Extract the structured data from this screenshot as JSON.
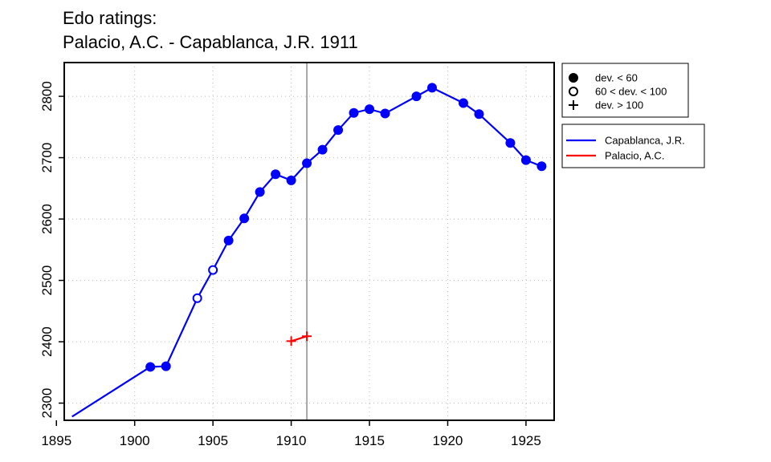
{
  "chart_data": {
    "type": "line",
    "title": "Edo ratings:",
    "subtitle": "Palacio, A.C. - Capablanca, J.R. 1911",
    "xlim": [
      1895.5,
      1926.8
    ],
    "ylim": [
      2272,
      2855
    ],
    "x_ticks": [
      1895,
      1900,
      1905,
      1910,
      1915,
      1920,
      1925
    ],
    "y_ticks": [
      2300,
      2400,
      2500,
      2600,
      2700,
      2800
    ],
    "grid": true,
    "reference_line_x": 1911,
    "marker_legend": {
      "placement": "top-right-outside",
      "entries": [
        {
          "label": "dev. < 60",
          "marker": "filled-circle"
        },
        {
          "label": "60 < dev. < 100",
          "marker": "open-circle"
        },
        {
          "label": "dev. > 100",
          "marker": "plus"
        }
      ]
    },
    "series": [
      {
        "name": "Capablanca, J.R.",
        "color": "#0000ff",
        "points": [
          {
            "x": 1896,
            "y": 2278,
            "marker": "none"
          },
          {
            "x": 1901,
            "y": 2359,
            "marker": "filled-circle"
          },
          {
            "x": 1902,
            "y": 2360,
            "marker": "filled-circle"
          },
          {
            "x": 1904,
            "y": 2471,
            "marker": "open-circle"
          },
          {
            "x": 1905,
            "y": 2517,
            "marker": "open-circle"
          },
          {
            "x": 1906,
            "y": 2565,
            "marker": "filled-circle"
          },
          {
            "x": 1907,
            "y": 2601,
            "marker": "filled-circle"
          },
          {
            "x": 1908,
            "y": 2644,
            "marker": "filled-circle"
          },
          {
            "x": 1909,
            "y": 2673,
            "marker": "filled-circle"
          },
          {
            "x": 1910,
            "y": 2663,
            "marker": "filled-circle"
          },
          {
            "x": 1911,
            "y": 2691,
            "marker": "filled-circle"
          },
          {
            "x": 1912,
            "y": 2713,
            "marker": "filled-circle"
          },
          {
            "x": 1913,
            "y": 2745,
            "marker": "filled-circle"
          },
          {
            "x": 1914,
            "y": 2773,
            "marker": "filled-circle"
          },
          {
            "x": 1915,
            "y": 2779,
            "marker": "filled-circle"
          },
          {
            "x": 1916,
            "y": 2772,
            "marker": "filled-circle"
          },
          {
            "x": 1918,
            "y": 2800,
            "marker": "filled-circle"
          },
          {
            "x": 1919,
            "y": 2814,
            "marker": "filled-circle"
          },
          {
            "x": 1921,
            "y": 2789,
            "marker": "filled-circle"
          },
          {
            "x": 1922,
            "y": 2771,
            "marker": "filled-circle"
          },
          {
            "x": 1924,
            "y": 2724,
            "marker": "filled-circle"
          },
          {
            "x": 1925,
            "y": 2696,
            "marker": "filled-circle"
          },
          {
            "x": 1926,
            "y": 2686,
            "marker": "filled-circle"
          }
        ]
      },
      {
        "name": "Palacio, A.C.",
        "color": "#ff0000",
        "points": [
          {
            "x": 1910,
            "y": 2401,
            "marker": "plus"
          },
          {
            "x": 1911,
            "y": 2409,
            "marker": "plus"
          }
        ]
      }
    ]
  }
}
